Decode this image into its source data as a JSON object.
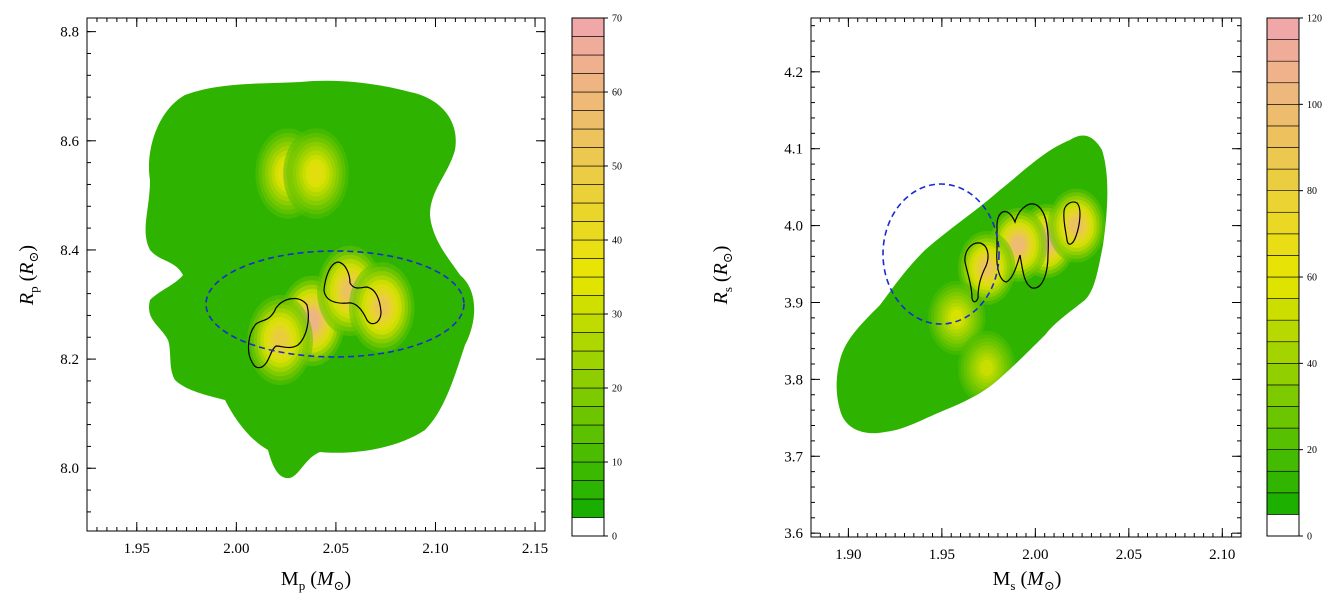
{
  "colors": {
    "low": "#0aab00",
    "mid": "#e8e600",
    "high": "#f0a7a7",
    "mass_ellipse": "#1a2bd6",
    "contour": "#000000"
  },
  "chart_data": [
    {
      "type": "heatmap",
      "name": "primary",
      "xlabel": {
        "main": "M",
        "sub": "p",
        "unit": "M",
        "unit_sub": "⊙"
      },
      "ylabel": {
        "main": "R",
        "sub": "p",
        "unit": "R",
        "unit_sub": "⊙"
      },
      "xlim": [
        1.925,
        2.155
      ],
      "ylim": [
        7.885,
        8.825
      ],
      "xticks": [
        "1.95",
        "2.00",
        "2.05",
        "2.10",
        "2.15"
      ],
      "xtick_values": [
        1.95,
        2.0,
        2.05,
        2.1,
        2.15
      ],
      "yticks": [
        "8.0",
        "8.2",
        "8.4",
        "8.6",
        "8.8"
      ],
      "ytick_values": [
        8.0,
        8.2,
        8.4,
        8.6,
        8.8
      ],
      "colorbar": {
        "min": 0,
        "max": 70,
        "levels": 28,
        "ticks": [
          "0",
          "10",
          "20",
          "30",
          "40",
          "50",
          "60",
          "70"
        ],
        "tick_values": [
          0,
          10,
          20,
          30,
          40,
          50,
          60,
          70
        ]
      },
      "peaks": [
        {
          "x": 2.038,
          "y": 8.27,
          "value": 68
        },
        {
          "x": 2.057,
          "y": 8.325,
          "value": 60
        },
        {
          "x": 2.073,
          "y": 8.295,
          "value": 56
        },
        {
          "x": 2.022,
          "y": 8.235,
          "value": 52
        },
        {
          "x": 2.026,
          "y": 8.54,
          "value": 42
        },
        {
          "x": 2.04,
          "y": 8.54,
          "value": 40
        }
      ],
      "ellipse": {
        "cx": 2.058,
        "cy": 8.32,
        "rx": 0.058,
        "ry": 0.12
      }
    },
    {
      "type": "heatmap",
      "name": "secondary",
      "xlabel": {
        "main": "M",
        "sub": "s",
        "unit": "M",
        "unit_sub": "⊙"
      },
      "ylabel": {
        "main": "R",
        "sub": "s",
        "unit": "R",
        "unit_sub": "⊙"
      },
      "xlim": [
        1.88,
        2.11
      ],
      "ylim": [
        3.595,
        4.27
      ],
      "xticks": [
        "1.90",
        "1.95",
        "2.00",
        "2.05",
        "2.10"
      ],
      "xtick_values": [
        1.9,
        1.95,
        2.0,
        2.05,
        2.1
      ],
      "yticks": [
        "3.6",
        "3.7",
        "3.8",
        "3.9",
        "4.0",
        "4.1",
        "4.2"
      ],
      "ytick_values": [
        3.6,
        3.7,
        3.8,
        3.9,
        4.0,
        4.1,
        4.2
      ],
      "colorbar": {
        "min": 0,
        "max": 120,
        "levels": 24,
        "ticks": [
          "0",
          "20",
          "40",
          "60",
          "80",
          "100",
          "120"
        ],
        "tick_values": [
          0,
          20,
          40,
          60,
          80,
          100,
          120
        ]
      },
      "peaks": [
        {
          "x": 2.006,
          "y": 3.98,
          "value": 118
        },
        {
          "x": 1.991,
          "y": 3.975,
          "value": 110
        },
        {
          "x": 2.022,
          "y": 4.0,
          "value": 102
        },
        {
          "x": 1.974,
          "y": 3.945,
          "value": 98
        },
        {
          "x": 1.958,
          "y": 3.88,
          "value": 60
        },
        {
          "x": 1.974,
          "y": 3.815,
          "value": 55
        }
      ],
      "ellipse": {
        "cx": 1.959,
        "cy": 3.96,
        "rx": 0.021,
        "ry": 0.09
      }
    }
  ]
}
